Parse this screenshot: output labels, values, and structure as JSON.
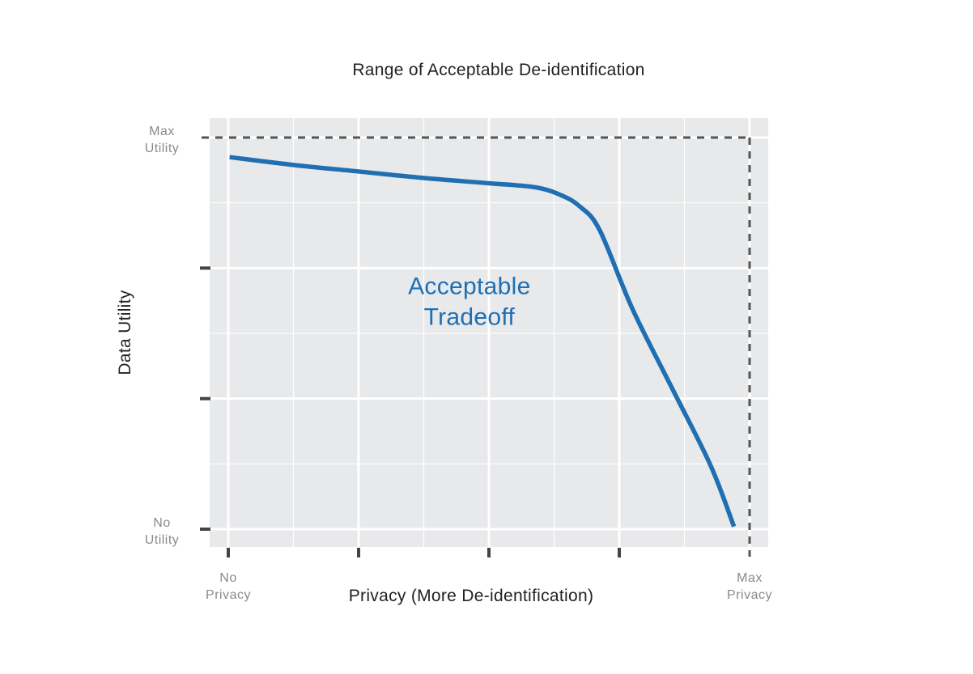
{
  "chart_data": {
    "type": "line",
    "title": "Range of Acceptable De-identification",
    "xlabel": "Privacy (More De-identification)",
    "ylabel": "Data Utility",
    "xlim": [
      0,
      4
    ],
    "ylim": [
      0,
      3
    ],
    "x_ticks": [
      0,
      1,
      2,
      3,
      4
    ],
    "y_ticks": [
      0,
      1,
      2,
      3
    ],
    "x_tick_labels": [
      {
        "value": 0,
        "lines": [
          "No",
          "Privacy"
        ]
      },
      {
        "value": 4,
        "lines": [
          "Max",
          "Privacy"
        ]
      }
    ],
    "y_tick_labels": [
      {
        "value": 3,
        "lines": [
          "Max",
          "Utility"
        ]
      },
      {
        "value": 0,
        "lines": [
          "No",
          "Utility"
        ]
      }
    ],
    "grid": true,
    "series": [
      {
        "color": "#1f6fb2",
        "x": [
          0.01,
          0.5,
          1.0,
          1.5,
          2.0,
          2.35,
          2.55,
          2.7,
          2.85,
          3.1,
          3.4,
          3.7,
          3.88
        ],
        "y": [
          2.85,
          2.79,
          2.74,
          2.69,
          2.65,
          2.62,
          2.56,
          2.47,
          2.29,
          1.69,
          1.09,
          0.49,
          0.02
        ]
      }
    ],
    "bounds": {
      "style": "dashed",
      "color": "#555555",
      "max_utility": 3,
      "max_privacy": 4
    },
    "annotations": [
      {
        "lines": [
          "Acceptable",
          "Tradeoff"
        ],
        "x": 1.85,
        "y": 1.8,
        "color": "#1f6fb2"
      }
    ]
  },
  "colors": {
    "panel_bg": "#e8e9eb",
    "grid": "#ffffff",
    "axis_tick": "#444444",
    "line": "#1f6fb2"
  }
}
